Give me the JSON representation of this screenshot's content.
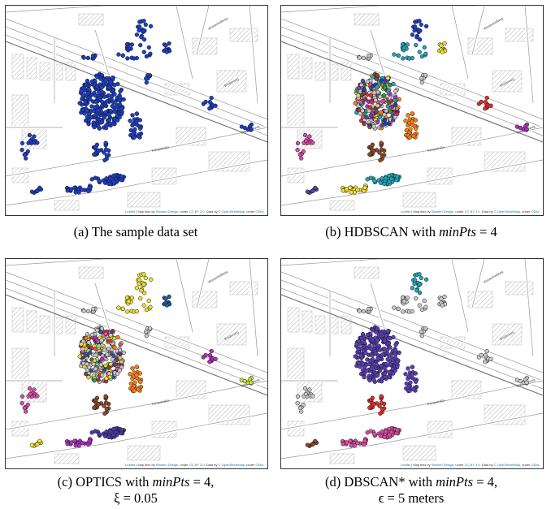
{
  "panels": [
    {
      "id": "a",
      "caption_text": "(a) The sample data set",
      "caption_math": "",
      "caption_suffix": "",
      "caption_line2": "",
      "mode": "all",
      "palette": [
        "#1f3fc4"
      ]
    },
    {
      "id": "b",
      "caption_text": "(b) HDBSCAN with ",
      "caption_math": "minPts",
      "caption_suffix": " = 4",
      "caption_line2": "",
      "mode": "hdbscan",
      "palette": [
        "#f0e030",
        "#2ca02c",
        "#e03030",
        "#ff7f0e",
        "#b030c0",
        "#21a7b8",
        "#4b4bb0",
        "#d84ea0",
        "#8c4a2a",
        "#1f3fc4"
      ]
    },
    {
      "id": "c",
      "caption_text": "(c) OPTICS with ",
      "caption_math": "minPts",
      "caption_suffix": " = 4,",
      "caption_line2": "ξ = 0.05",
      "mode": "optics",
      "palette": [
        "#f0e030",
        "#2ca02c",
        "#e03030",
        "#ff7f0e",
        "#b030c0",
        "#1f5aa0",
        "#c8e040",
        "#d84ea0",
        "#8c4a2a",
        "#4b3aa8"
      ]
    },
    {
      "id": "d",
      "caption_text": "(d) DBSCAN* with ",
      "caption_math": "minPts",
      "caption_suffix": " = 4,",
      "caption_line2": "ϵ = 5 meters",
      "mode": "dbscan",
      "palette": [
        "#5b3fb5",
        "#e03030",
        "#d84ea0",
        "#21a7b8",
        "#8c4a2a"
      ]
    }
  ],
  "attribution": {
    "leaflet": "Leaflet",
    "text1": " | Map tiles by ",
    "stamen": "Stamen Design",
    "text2": ", under ",
    "ccby": "CC BY 3.0",
    "text3": ". Data by ",
    "osm": "© OpenStreetMap",
    "text4": ", under ",
    "odbl": "ODbL"
  },
  "street_labels": [
    "Westenhellweg",
    "Brüderweg",
    "Kampstraße",
    "Ostenhellweg"
  ],
  "colors": {
    "noise": "#c8c8c8",
    "road": "#9a9a9a",
    "hatch": "#b5b5b5"
  }
}
